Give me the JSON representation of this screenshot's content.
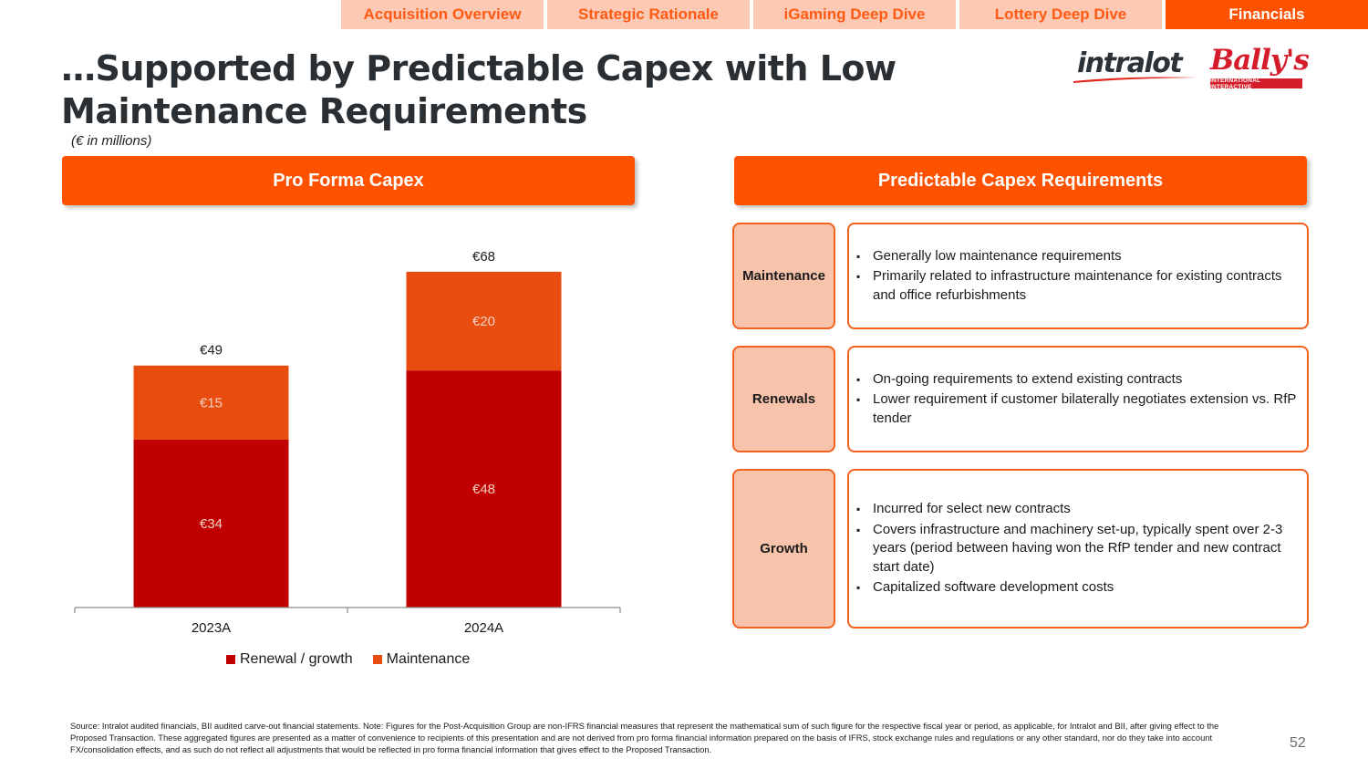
{
  "nav": {
    "tabs": [
      {
        "label": "Acquisition Overview",
        "active": false
      },
      {
        "label": "Strategic Rationale",
        "active": false
      },
      {
        "label": "iGaming Deep Dive",
        "active": false
      },
      {
        "label": "Lottery Deep Dive",
        "active": false
      },
      {
        "label": "Financials",
        "active": true
      }
    ]
  },
  "title": "…Supported by Predictable Capex with Low Maintenance Requirements",
  "units_note": "(€ in millions)",
  "logos": {
    "intralot": "intralot",
    "ballys": "Bally's",
    "ballys_sub": "INTERNATIONAL INTERACTIVE"
  },
  "left_header": "Pro Forma Capex",
  "right_header": "Predictable Capex Requirements",
  "colors": {
    "accent": "#ff5200",
    "renewal_growth": "#c00000",
    "maintenance": "#e84d10",
    "label_fill": "#f7c3ab",
    "label_border": "#f2621e"
  },
  "chart_data": {
    "type": "bar",
    "stacked": true,
    "categories": [
      "2023A",
      "2024A"
    ],
    "series": [
      {
        "name": "Renewal / growth",
        "values": [
          34,
          48
        ],
        "labels": [
          "€34",
          "€48"
        ]
      },
      {
        "name": "Maintenance",
        "values": [
          15,
          20
        ],
        "labels": [
          "€15",
          "€20"
        ]
      }
    ],
    "totals": [
      49,
      68
    ],
    "total_labels": [
      "€49",
      "€68"
    ],
    "ylim": [
      0,
      75
    ],
    "grid": false,
    "legend": "bottom"
  },
  "requirements": [
    {
      "label": "Maintenance",
      "bullets": [
        "Generally low maintenance requirements",
        "Primarily related to infrastructure maintenance for existing contracts and office refurbishments"
      ]
    },
    {
      "label": "Renewals",
      "bullets": [
        "On-going requirements to extend existing contracts",
        "Lower requirement if customer bilaterally negotiates extension vs. RfP tender"
      ]
    },
    {
      "label": "Growth",
      "bullets": [
        "Incurred for select new contracts",
        "Covers infrastructure and machinery set-up, typically spent over 2-3 years (period between having won the RfP tender and new contract start date)",
        "Capitalized software development costs"
      ]
    }
  ],
  "source": "Source: Intralot audited financials, BII audited carve-out financial statements. Note: Figures for the Post-Acquisition Group are non-IFRS financial measures that represent the mathematical sum of such figure for the respective fiscal year or period, as applicable, for Intralot and BII, after giving effect to the Proposed Transaction. These aggregated figures are presented as a matter of convenience to recipients of this presentation and are not derived from pro forma financial information prepared on the basis of IFRS, stock exchange rules and regulations or any other standard, nor do they take into account FX/consolidation effects, and as such do not reflect all adjustments that would be reflected in pro forma financial information that gives effect to the Proposed Transaction.",
  "page_number": "52"
}
